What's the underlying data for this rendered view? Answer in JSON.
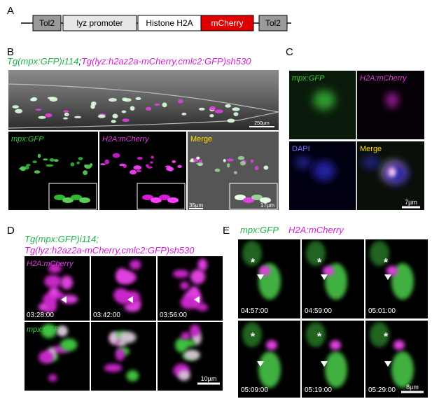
{
  "panels": {
    "A": {
      "label": "A",
      "construct": [
        "Tol2",
        "lyz promoter",
        "Histone H2A",
        "mCherry",
        "Tol2"
      ]
    },
    "B": {
      "label": "B",
      "heading": [
        "Tg(mpx:GFP)i114",
        ";",
        "Tg(lyz:h2az2a-mCherry,cmlc2:GFP)sh530"
      ],
      "overview_scale": "250µm",
      "channels": [
        "mpx:GFP",
        "H2A:mCherry",
        "Merge"
      ],
      "scales": [
        "35µm",
        "17µm"
      ]
    },
    "C": {
      "label": "C",
      "channels": [
        "mpx:GFP",
        "H2A:mCherry",
        "DAPI",
        "Merge"
      ],
      "scale": "7µm"
    },
    "D": {
      "label": "D",
      "heading": [
        "Tg(mpx:GFP)i114;",
        "Tg(lyz:h2az2a-mCherry,cmlc2:GFP)sh530"
      ],
      "channels": [
        "H2A:mCherry",
        "mpx:GFP"
      ],
      "times": [
        "03:28:00",
        "03:42:00",
        "03:56:00"
      ],
      "scale": "10µm"
    },
    "E": {
      "label": "E",
      "channels": [
        "mpx:GFP",
        "H2A:mCherry"
      ],
      "times": [
        "04:57:00",
        "04:59:00",
        "05:01:00",
        "05:09:00",
        "05:19:00",
        "05:29:00"
      ],
      "asterisk": "*",
      "scale": "8µm"
    }
  }
}
